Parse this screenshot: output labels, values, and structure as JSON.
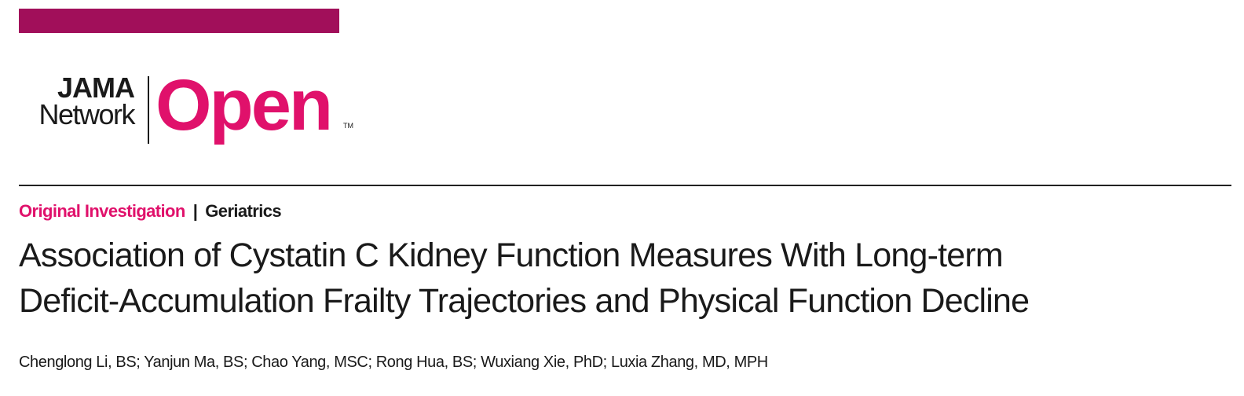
{
  "colors": {
    "top_bar": "#a10f5a",
    "brand_pink": "#e0116b",
    "text": "#1a1a1a"
  },
  "logo": {
    "line1": "JAMA",
    "line2": "Network",
    "word": "Open",
    "tm": "TM"
  },
  "article": {
    "type": "Original Investigation",
    "separator": "|",
    "category": "Geriatrics",
    "title_lines": [
      "Association of Cystatin C Kidney Function Measures With Long-term",
      "Deficit-Accumulation Frailty Trajectories and Physical Function Decline"
    ],
    "authors": "Chenglong Li, BS; Yanjun Ma, BS; Chao Yang, MSC; Rong Hua, BS; Wuxiang Xie, PhD; Luxia Zhang, MD, MPH"
  }
}
